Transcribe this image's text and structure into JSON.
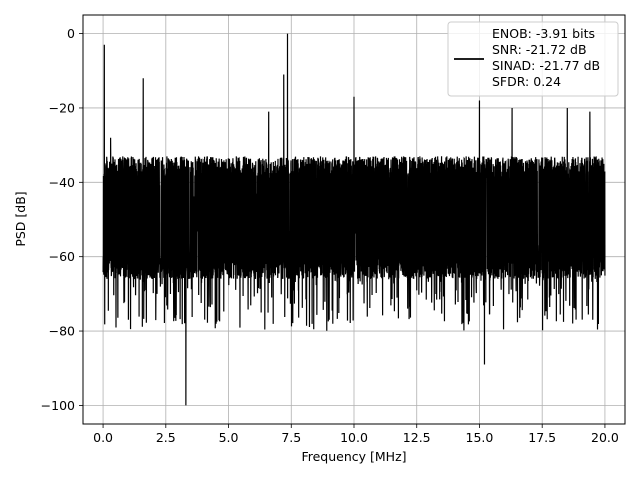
{
  "chart_data": {
    "type": "line",
    "xlabel": "Frequency [MHz]",
    "ylabel": "PSD [dB]",
    "xlim": [
      -0.8,
      20.8
    ],
    "ylim": [
      -105,
      5
    ],
    "x_ticks": [
      0.0,
      2.5,
      5.0,
      7.5,
      10.0,
      12.5,
      15.0,
      17.5,
      20.0
    ],
    "x_tick_labels": [
      "0.0",
      "2.5",
      "5.0",
      "7.5",
      "10.0",
      "12.5",
      "15.0",
      "17.5",
      "20.0"
    ],
    "y_ticks": [
      0,
      -20,
      -40,
      -60,
      -80,
      -100
    ],
    "y_tick_labels": [
      "0",
      "−20",
      "−40",
      "−60",
      "−80",
      "−100"
    ],
    "grid": true,
    "legend_position": "top-right",
    "series": [
      {
        "name_lines": [
          "ENOB: -3.91 bits",
          "SNR: -21.72 dB",
          "SINAD: -21.77 dB",
          "SFDR: 0.24"
        ],
        "color": "#000000",
        "x_range": [
          0.0,
          20.0
        ],
        "noise_band_db": [
          -66,
          -33
        ],
        "noise_floor_typical_db": -50,
        "peaks": [
          {
            "x": 0.05,
            "y": -3
          },
          {
            "x": 0.3,
            "y": -28
          },
          {
            "x": 1.6,
            "y": -12
          },
          {
            "x": 3.3,
            "y": -100
          },
          {
            "x": 6.6,
            "y": -21
          },
          {
            "x": 7.2,
            "y": -11
          },
          {
            "x": 7.35,
            "y": 0
          },
          {
            "x": 10.0,
            "y": -17
          },
          {
            "x": 15.0,
            "y": -18
          },
          {
            "x": 15.2,
            "y": -89
          },
          {
            "x": 16.3,
            "y": -20
          },
          {
            "x": 18.5,
            "y": -20
          },
          {
            "x": 19.4,
            "y": -21
          }
        ]
      }
    ]
  }
}
